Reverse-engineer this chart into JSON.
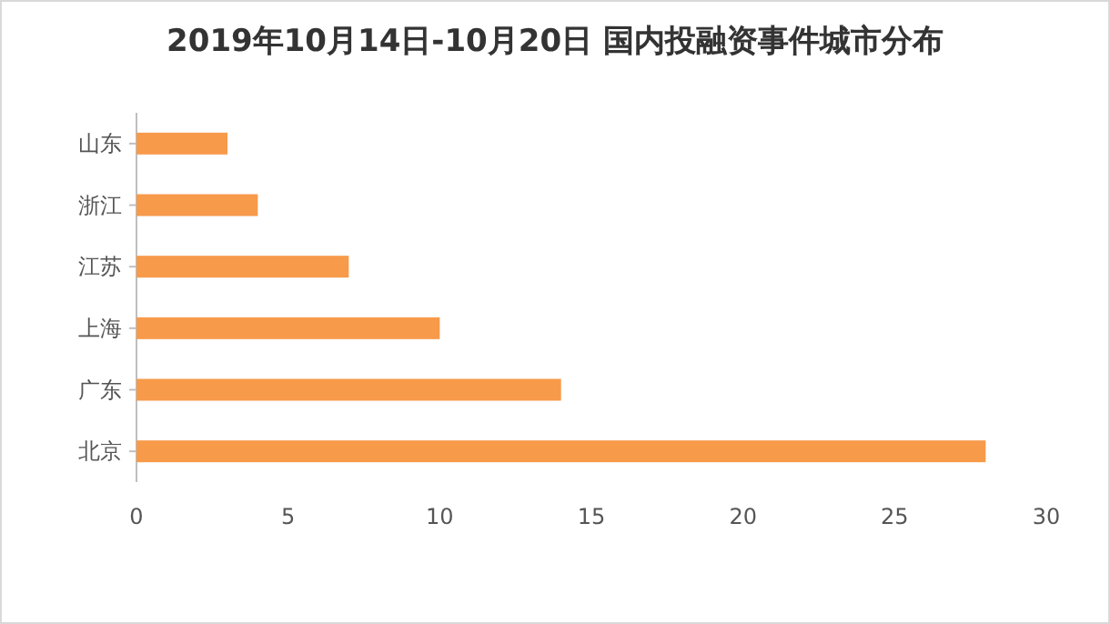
{
  "chart_data": {
    "type": "bar",
    "orientation": "horizontal",
    "title": "2019年10月14日-10月20日 国内投融资事件城市分布",
    "categories": [
      "山东",
      "浙江",
      "江苏",
      "上海",
      "广东",
      "北京"
    ],
    "values": [
      3,
      4,
      7,
      10,
      14,
      28
    ],
    "color": "#f79a4a",
    "xlim": [
      0,
      30
    ],
    "xticks": [
      0,
      5,
      10,
      15,
      20,
      25,
      30
    ]
  }
}
